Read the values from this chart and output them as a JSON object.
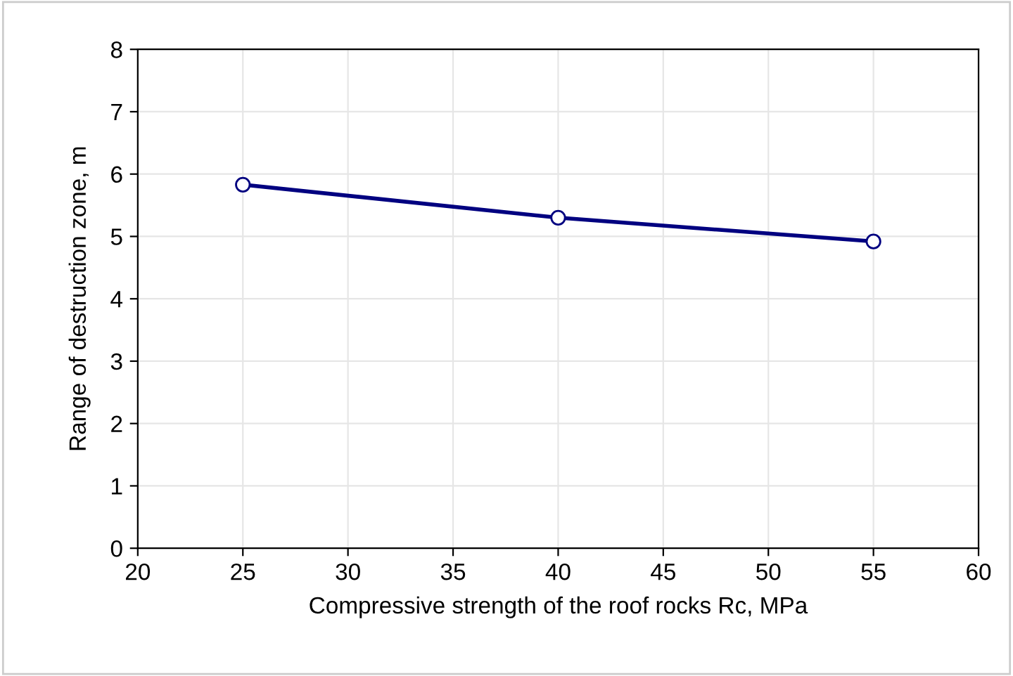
{
  "chart_data": {
    "type": "line",
    "xlabel": "Compressive strength of the roof rocks Rc, MPa",
    "ylabel": "Range of destruction zone, m",
    "x": [
      25,
      40,
      55
    ],
    "series": [
      {
        "color": "#000080",
        "values": [
          5.83,
          5.3,
          4.92
        ]
      }
    ],
    "xlim": [
      20,
      60
    ],
    "xticks": [
      20,
      25,
      30,
      35,
      40,
      45,
      50,
      55,
      60
    ],
    "ylim": [
      0,
      8
    ],
    "yticks": [
      0,
      1,
      2,
      3,
      4,
      5,
      6,
      7,
      8
    ],
    "grid": true,
    "marker": "circle",
    "line_style": "solid",
    "legend": false
  }
}
